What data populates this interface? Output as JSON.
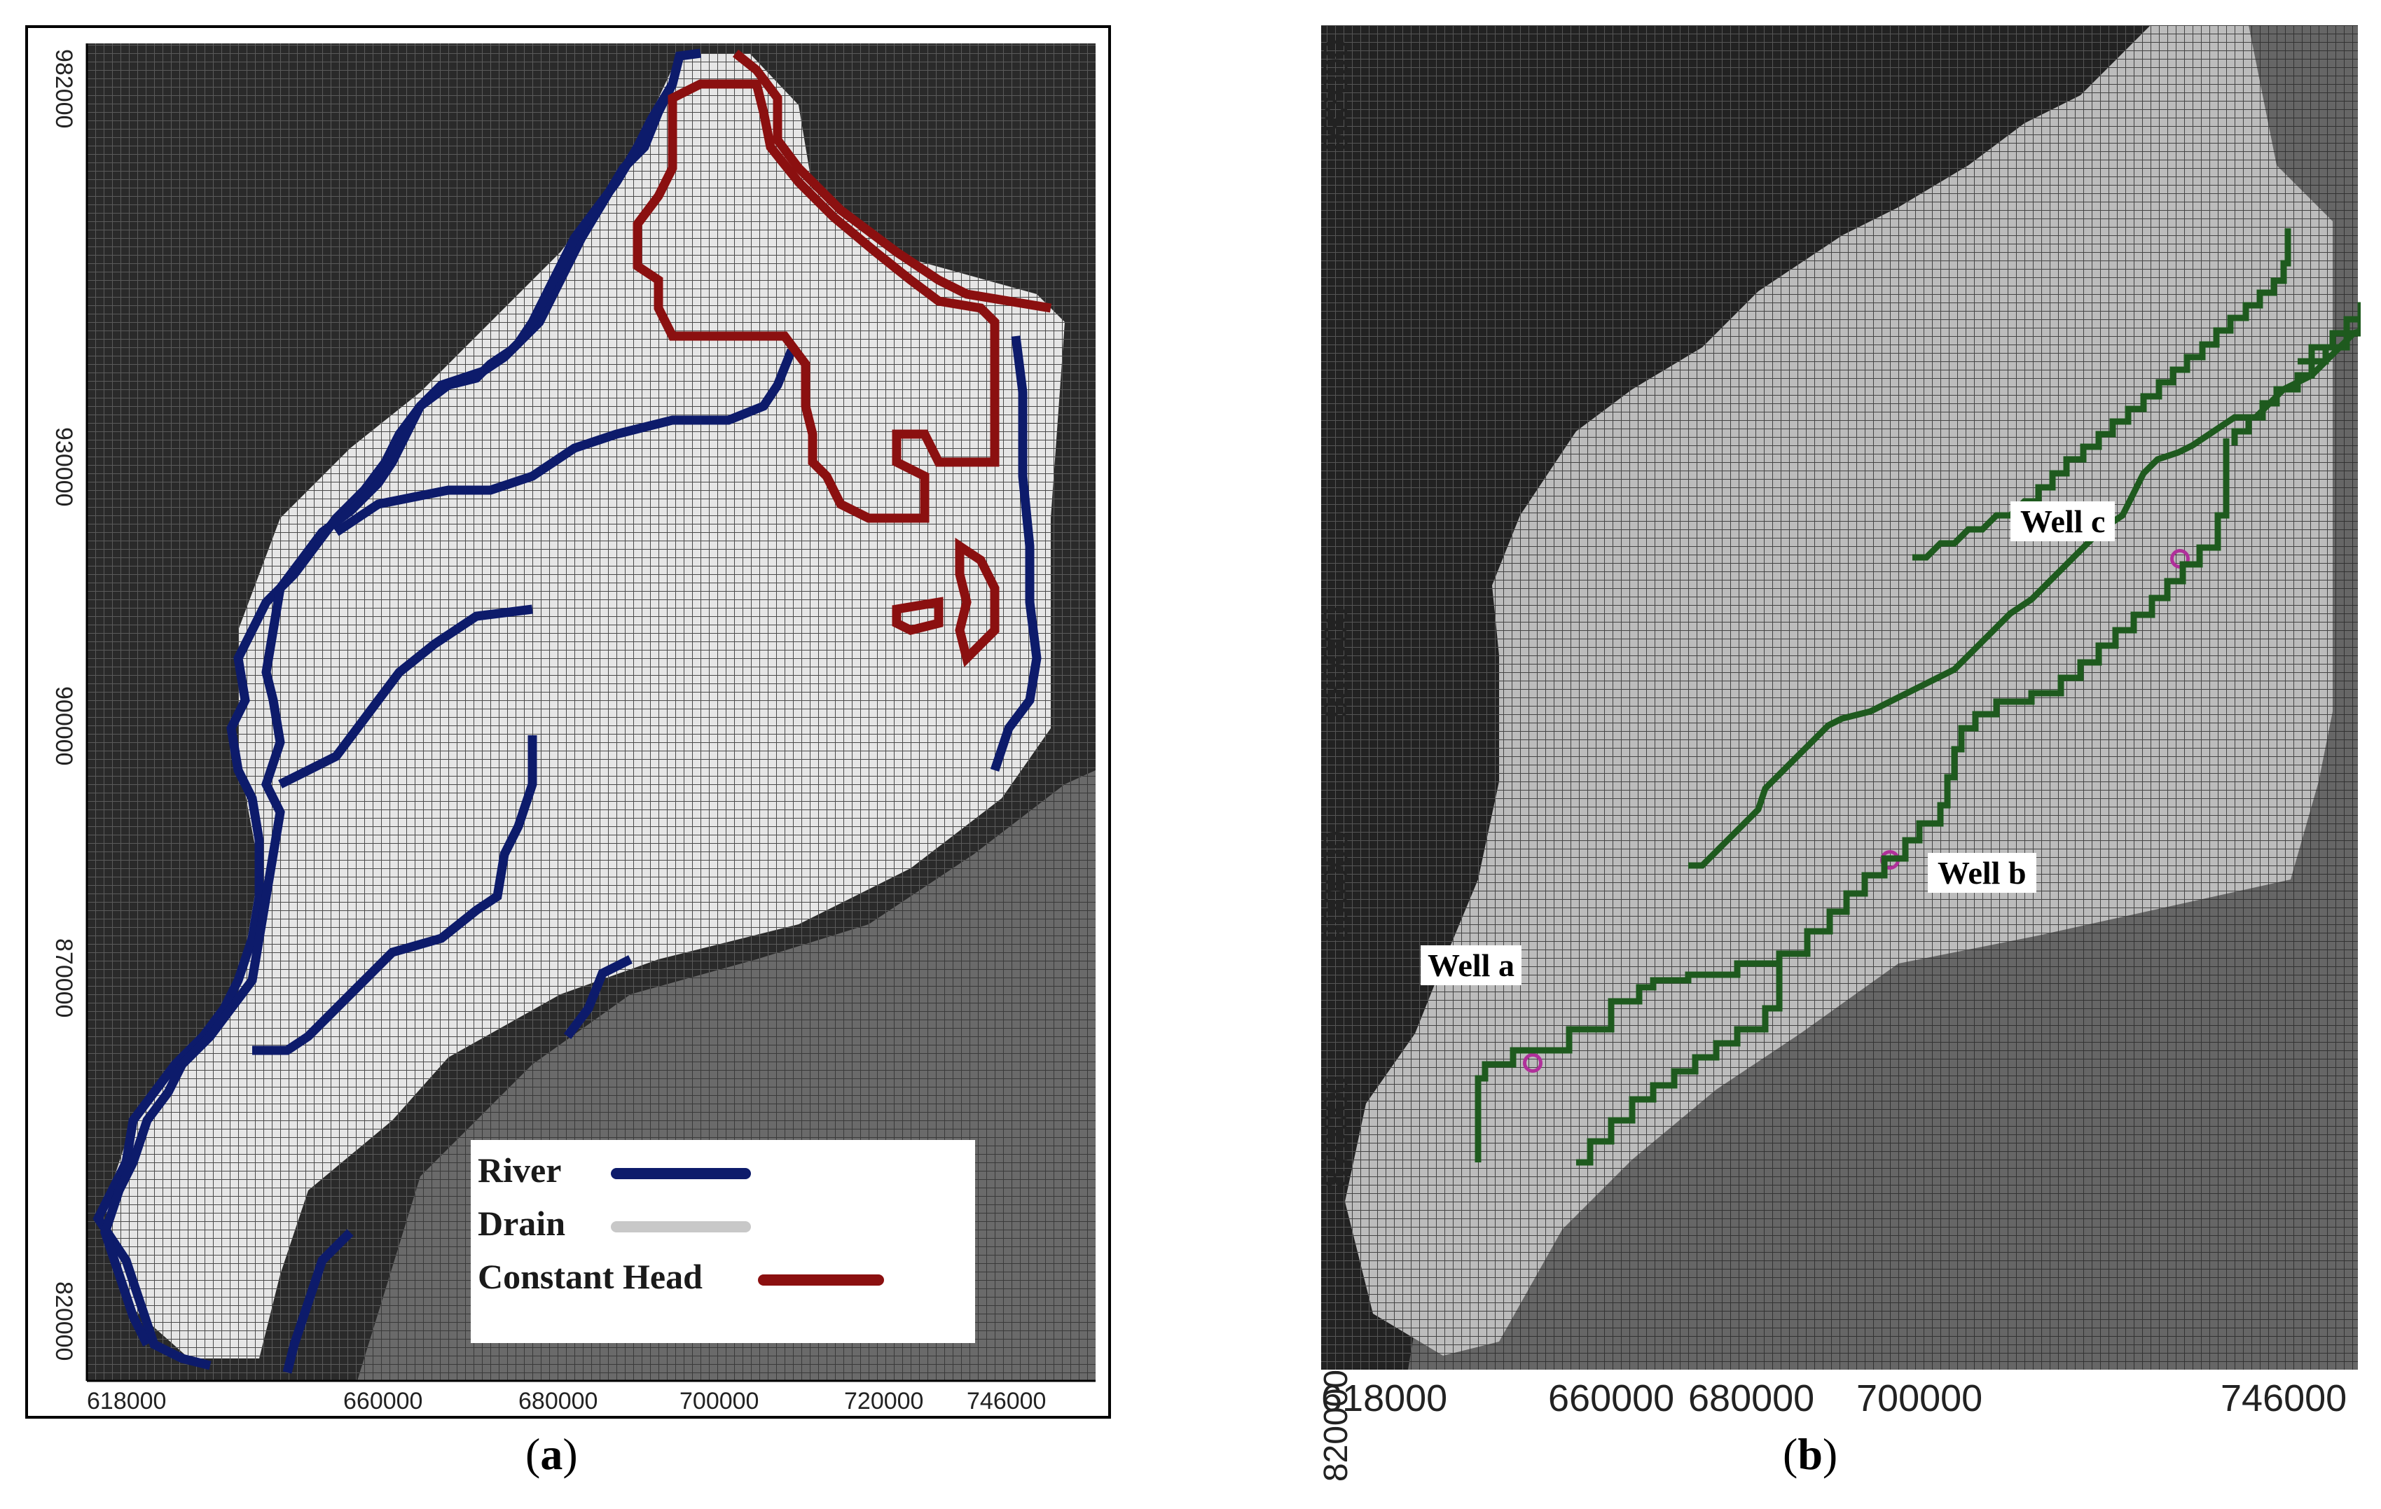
{
  "panel_a": {
    "caption": "a",
    "x_ticks": [
      "618000",
      "660000",
      "680000",
      "700000",
      "720000",
      "746000"
    ],
    "y_ticks": [
      "982000",
      "930000",
      "900000",
      "870000",
      "820000"
    ],
    "legend": [
      {
        "label": "River",
        "color": "#0d1b6b"
      },
      {
        "label": "Drain",
        "color": "#c8c8c8"
      },
      {
        "label": "Constant Head",
        "color": "#8b1010"
      }
    ]
  },
  "panel_b": {
    "caption": "b",
    "x_ticks": [
      "618000",
      "660000",
      "680000",
      "700000",
      "746000"
    ],
    "y_ticks": [
      "982000",
      "930000",
      "900000",
      "870000",
      "820000"
    ],
    "wells": [
      {
        "label": "Well a"
      },
      {
        "label": "Well b"
      },
      {
        "label": "Well c"
      }
    ],
    "path_color": "#1e5a1e",
    "well_color": "#b0309a"
  },
  "colors": {
    "grid_dark": "#2c2c2c",
    "grid_mid": "#6e6e6e",
    "grid_light": "#bdbdbd",
    "river": "#0d1b6b",
    "constant_head": "#8b1010"
  }
}
